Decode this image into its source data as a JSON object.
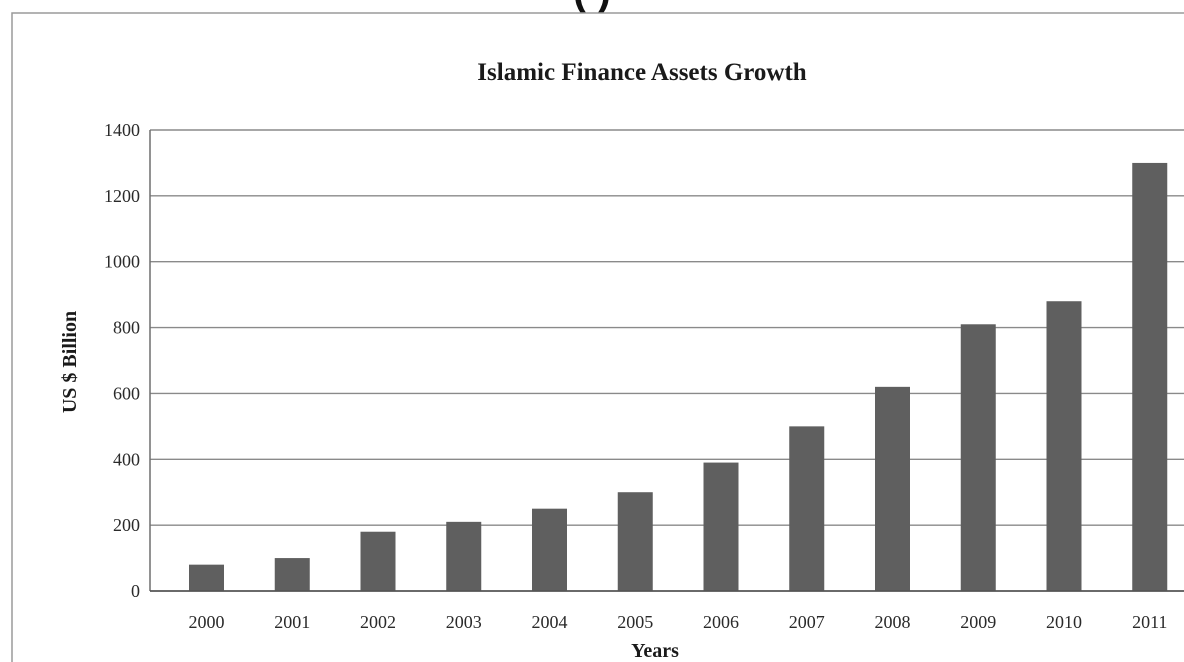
{
  "top_caption": "(          )",
  "chart_data": {
    "type": "bar",
    "title": "Islamic Finance Assets Growth",
    "xlabel": "Years",
    "ylabel": "US $ Billion",
    "categories": [
      "2000",
      "2001",
      "2002",
      "2003",
      "2004",
      "2005",
      "2006",
      "2007",
      "2008",
      "2009",
      "2010",
      "2011"
    ],
    "values": [
      80,
      100,
      180,
      210,
      250,
      300,
      390,
      500,
      620,
      810,
      880,
      1300
    ],
    "ylim": [
      0,
      1400
    ],
    "yticks": [
      0,
      200,
      400,
      600,
      800,
      1000,
      1200,
      1400
    ],
    "grid": true,
    "legend": "none",
    "bar_color": "#5f5f5f",
    "grid_color": "#8a8a8a",
    "frame_color": "#9a9a9a"
  }
}
